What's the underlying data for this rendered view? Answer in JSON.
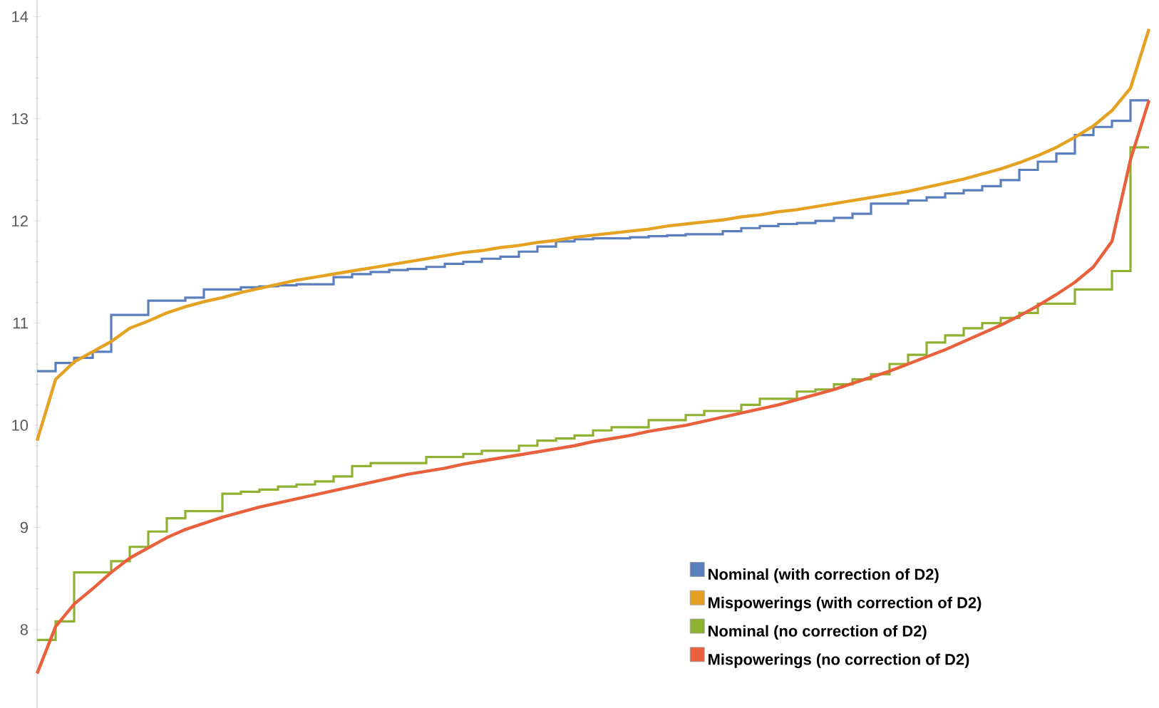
{
  "chart_data": {
    "type": "line",
    "categories": [
      null,
      null,
      null,
      null,
      null,
      null,
      null,
      null,
      null,
      null,
      null,
      null,
      null,
      null,
      null,
      null,
      null,
      null,
      null,
      null,
      null,
      null,
      null,
      null,
      null,
      null,
      null,
      null,
      null,
      null,
      null,
      null,
      null,
      null,
      null,
      null,
      null,
      null,
      null,
      null,
      null,
      null,
      null,
      null,
      null,
      null,
      null,
      null,
      null,
      null,
      null,
      null,
      null,
      null,
      null,
      null,
      null,
      null,
      null,
      null,
      null
    ],
    "series": [
      {
        "name": "Nominal (with correction of D2)",
        "type": "step",
        "color": "#5b7fbd",
        "values": [
          10.53,
          10.61,
          10.66,
          10.72,
          11.08,
          11.08,
          11.22,
          11.22,
          11.25,
          11.33,
          11.33,
          11.35,
          11.36,
          11.37,
          11.38,
          11.38,
          11.45,
          11.48,
          11.5,
          11.52,
          11.53,
          11.55,
          11.58,
          11.6,
          11.63,
          11.65,
          11.7,
          11.75,
          11.8,
          11.82,
          11.83,
          11.83,
          11.84,
          11.85,
          11.86,
          11.87,
          11.87,
          11.9,
          11.93,
          11.95,
          11.97,
          11.98,
          12.0,
          12.03,
          12.07,
          12.17,
          12.17,
          12.2,
          12.23,
          12.27,
          12.3,
          12.34,
          12.4,
          12.5,
          12.58,
          12.66,
          12.84,
          12.92,
          12.98,
          13.18,
          13.18
        ]
      },
      {
        "name": "Mispowerings  (with correction of D2)",
        "color": "#e5a122",
        "values": [
          9.85,
          10.45,
          10.62,
          10.72,
          10.82,
          10.95,
          11.02,
          11.1,
          11.16,
          11.21,
          11.25,
          11.3,
          11.34,
          11.38,
          11.42,
          11.45,
          11.48,
          11.51,
          11.54,
          11.57,
          11.6,
          11.63,
          11.66,
          11.69,
          11.71,
          11.74,
          11.76,
          11.79,
          11.81,
          11.84,
          11.86,
          11.88,
          11.9,
          11.92,
          11.95,
          11.97,
          11.99,
          12.01,
          12.04,
          12.06,
          12.09,
          12.11,
          12.14,
          12.17,
          12.2,
          12.23,
          12.26,
          12.29,
          12.33,
          12.37,
          12.41,
          12.46,
          12.51,
          12.57,
          12.64,
          12.72,
          12.82,
          12.93,
          13.08,
          13.3,
          13.88
        ]
      },
      {
        "name": "Nominal (no correction of D2)",
        "type": "step",
        "color": "#8fb131",
        "values": [
          7.9,
          8.08,
          8.56,
          8.56,
          8.67,
          8.81,
          8.96,
          9.09,
          9.16,
          9.16,
          9.33,
          9.35,
          9.37,
          9.4,
          9.42,
          9.45,
          9.5,
          9.6,
          9.63,
          9.63,
          9.63,
          9.69,
          9.69,
          9.72,
          9.75,
          9.75,
          9.8,
          9.85,
          9.87,
          9.9,
          9.95,
          9.98,
          9.98,
          10.05,
          10.05,
          10.1,
          10.14,
          10.14,
          10.2,
          10.26,
          10.26,
          10.33,
          10.35,
          10.4,
          10.45,
          10.5,
          10.6,
          10.69,
          10.81,
          10.88,
          10.95,
          11.0,
          11.05,
          11.1,
          11.19,
          11.19,
          11.33,
          11.33,
          11.51,
          12.72,
          12.72
        ]
      },
      {
        "name": "Mispowerings  (no correction of D2)",
        "color": "#e8603c",
        "values": [
          7.57,
          8.03,
          8.25,
          8.4,
          8.56,
          8.7,
          8.8,
          8.9,
          8.98,
          9.04,
          9.1,
          9.15,
          9.2,
          9.24,
          9.28,
          9.32,
          9.36,
          9.4,
          9.44,
          9.48,
          9.52,
          9.55,
          9.58,
          9.62,
          9.65,
          9.68,
          9.71,
          9.74,
          9.77,
          9.8,
          9.84,
          9.87,
          9.9,
          9.94,
          9.97,
          10.0,
          10.04,
          10.08,
          10.12,
          10.16,
          10.2,
          10.25,
          10.3,
          10.35,
          10.41,
          10.47,
          10.53,
          10.6,
          10.67,
          10.74,
          10.82,
          10.9,
          10.98,
          11.07,
          11.17,
          11.28,
          11.4,
          11.55,
          11.8,
          12.6,
          13.18
        ]
      }
    ],
    "ylim": [
      7.23,
      14.16
    ],
    "yticks": [
      8,
      9,
      10,
      11,
      12,
      13,
      14
    ],
    "tick_labels": "y",
    "legend": "bottom right",
    "grid": false
  }
}
